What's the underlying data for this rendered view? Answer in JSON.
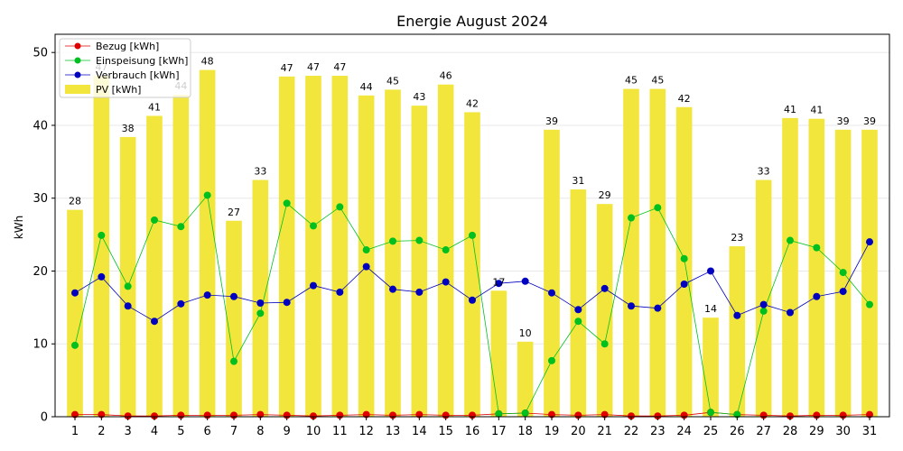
{
  "chart_data": {
    "type": "bar",
    "title": "Energie August 2024",
    "xlabel": "",
    "ylabel": "kWh",
    "ylim": [
      0,
      52.5
    ],
    "yticks": [
      0,
      10,
      20,
      30,
      40,
      50
    ],
    "grid": true,
    "legend_position": "top-left",
    "categories": [
      "1",
      "2",
      "3",
      "4",
      "5",
      "6",
      "7",
      "8",
      "9",
      "10",
      "11",
      "12",
      "13",
      "14",
      "15",
      "16",
      "17",
      "18",
      "19",
      "20",
      "21",
      "22",
      "23",
      "24",
      "25",
      "26",
      "27",
      "28",
      "29",
      "30",
      "31"
    ],
    "bars": {
      "name": "PV [kWh]",
      "color": "#f2e63d",
      "values": [
        28.4,
        46.8,
        38.4,
        41.3,
        44.2,
        47.6,
        26.9,
        32.5,
        46.7,
        46.8,
        46.8,
        44.1,
        44.9,
        42.7,
        45.6,
        41.8,
        17.3,
        10.3,
        39.4,
        31.2,
        29.2,
        45.0,
        45.0,
        42.5,
        13.6,
        23.4,
        32.5,
        41.0,
        40.9,
        39.4,
        39.4
      ],
      "labels": [
        "28",
        "47",
        "38",
        "41",
        "44",
        "48",
        "27",
        "33",
        "47",
        "47",
        "47",
        "44",
        "45",
        "43",
        "46",
        "42",
        "17",
        "10",
        "39",
        "31",
        "29",
        "45",
        "45",
        "42",
        "14",
        "23",
        "33",
        "41",
        "41",
        "39",
        "39"
      ]
    },
    "series": [
      {
        "name": "Bezug [kWh]",
        "color": "#e00000",
        "values": [
          0.3,
          0.3,
          0.1,
          0.1,
          0.2,
          0.2,
          0.2,
          0.3,
          0.2,
          0.1,
          0.2,
          0.3,
          0.2,
          0.3,
          0.2,
          0.2,
          0.4,
          0.5,
          0.3,
          0.2,
          0.3,
          0.1,
          0.1,
          0.2,
          0.6,
          0.3,
          0.2,
          0.1,
          0.2,
          0.2,
          0.3
        ]
      },
      {
        "name": "Einspeisung [kWh]",
        "color": "#00c020",
        "values": [
          9.8,
          24.9,
          17.9,
          27.0,
          26.1,
          30.4,
          7.6,
          14.2,
          29.3,
          26.2,
          28.8,
          22.9,
          24.1,
          24.2,
          22.9,
          24.9,
          0.4,
          0.5,
          7.7,
          13.1,
          10.0,
          27.3,
          28.7,
          21.7,
          0.6,
          0.3,
          14.5,
          24.2,
          23.2,
          19.8,
          15.4
        ]
      },
      {
        "name": "Verbrauch [kWh]",
        "color": "#0000c0",
        "values": [
          17.0,
          19.2,
          15.2,
          13.1,
          15.5,
          16.7,
          16.5,
          15.6,
          15.7,
          18.0,
          17.1,
          20.6,
          17.5,
          17.1,
          18.5,
          16.0,
          18.3,
          18.6,
          17.0,
          14.7,
          17.6,
          15.2,
          14.9,
          18.2,
          20.0,
          13.9,
          15.4,
          14.3,
          16.5,
          17.2,
          24.0
        ]
      }
    ],
    "legend": [
      {
        "label": "Bezug [kWh]",
        "kind": "line",
        "color": "#e00000"
      },
      {
        "label": "Einspeisung [kWh]",
        "kind": "line",
        "color": "#00c020"
      },
      {
        "label": "Verbrauch [kWh]",
        "kind": "line",
        "color": "#0000c0"
      },
      {
        "label": "PV [kWh]",
        "kind": "bar",
        "color": "#f2e63d"
      }
    ]
  }
}
